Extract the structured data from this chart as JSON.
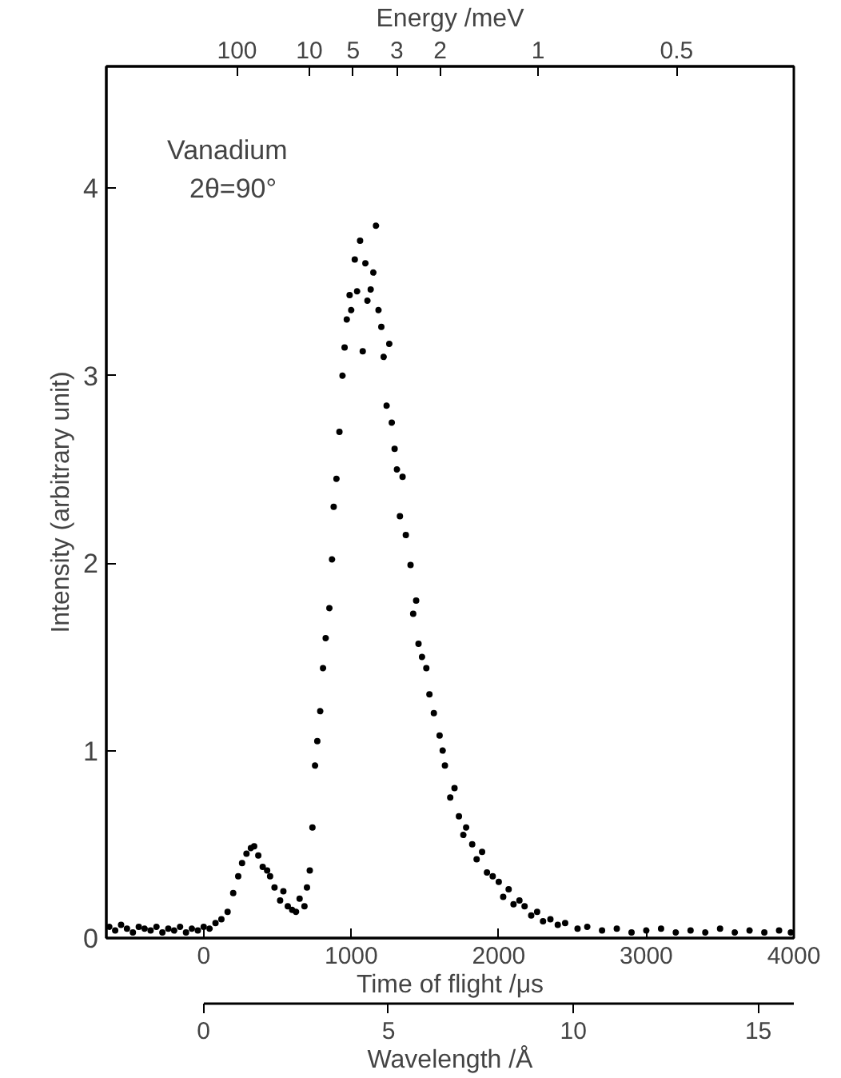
{
  "chart_data": {
    "type": "scatter",
    "title": "Energy /meV",
    "xlabel": "Time of flight /μs",
    "ylabel": "Intensity (arbitrary unit)",
    "x2label": "Wavelength /Å",
    "annotations": [
      "Vanadium",
      "2θ=90°",
      "100",
      "10",
      "5",
      "3",
      "2",
      "1",
      "0.5"
    ],
    "xlim": [
      -660,
      4000
    ],
    "xticks": [
      0,
      1000,
      2000,
      3000,
      4000
    ],
    "ylim": [
      0,
      4.65
    ],
    "yticks": [
      0,
      1,
      2,
      3,
      4
    ],
    "x2lim": [
      -2.63,
      15.96
    ],
    "x2ticks": [
      0,
      5,
      10,
      15
    ],
    "marker": "circle",
    "grid": false,
    "series": [
      {
        "color": "#000000",
        "x": [
          -640,
          -600,
          -560,
          -520,
          -480,
          -440,
          -400,
          -360,
          -320,
          -280,
          -240,
          -200,
          -160,
          -120,
          -80,
          -40,
          0,
          40,
          80,
          120,
          162,
          200,
          234,
          260,
          290,
          320,
          342,
          370,
          400,
          430,
          450,
          480,
          518,
          540,
          570,
          600,
          626,
          650,
          683,
          700,
          719,
          737,
          755,
          770,
          790,
          809,
          827,
          852,
          870,
          881,
          900,
          920,
          941,
          955,
          970,
          989,
          1000,
          1024,
          1040,
          1060,
          1078,
          1096,
          1110,
          1132,
          1150,
          1168,
          1185,
          1204,
          1220,
          1240,
          1258,
          1275,
          1294,
          1310,
          1330,
          1348,
          1370,
          1402,
          1420,
          1440,
          1456,
          1480,
          1509,
          1530,
          1560,
          1599,
          1620,
          1635,
          1671,
          1700,
          1730,
          1760,
          1779,
          1820,
          1850,
          1887,
          1920,
          1959,
          2000,
          2030,
          2067,
          2100,
          2140,
          2175,
          2220,
          2260,
          2300,
          2350,
          2400,
          2450,
          2534,
          2600,
          2700,
          2800,
          2900,
          3000,
          3100,
          3200,
          3300,
          3400,
          3500,
          3600,
          3700,
          3800,
          3900,
          3980
        ],
        "values": [
          0.06,
          0.04,
          0.07,
          0.05,
          0.03,
          0.06,
          0.05,
          0.04,
          0.06,
          0.03,
          0.05,
          0.04,
          0.06,
          0.03,
          0.05,
          0.04,
          0.06,
          0.05,
          0.08,
          0.1,
          0.14,
          0.24,
          0.33,
          0.4,
          0.45,
          0.48,
          0.49,
          0.44,
          0.38,
          0.36,
          0.33,
          0.27,
          0.2,
          0.25,
          0.17,
          0.15,
          0.14,
          0.21,
          0.17,
          0.27,
          0.36,
          0.59,
          0.92,
          1.05,
          1.21,
          1.44,
          1.6,
          1.76,
          2.02,
          2.3,
          2.45,
          2.7,
          3.0,
          3.15,
          3.3,
          3.43,
          3.35,
          3.62,
          3.45,
          3.72,
          3.13,
          3.6,
          3.4,
          3.46,
          3.55,
          3.8,
          3.35,
          3.26,
          3.1,
          2.84,
          3.17,
          2.75,
          2.61,
          2.5,
          2.25,
          2.46,
          2.15,
          1.99,
          1.73,
          1.8,
          1.57,
          1.5,
          1.44,
          1.3,
          1.2,
          1.08,
          1.0,
          0.92,
          0.75,
          0.8,
          0.65,
          0.55,
          0.59,
          0.5,
          0.42,
          0.46,
          0.35,
          0.33,
          0.3,
          0.22,
          0.26,
          0.18,
          0.2,
          0.17,
          0.12,
          0.14,
          0.09,
          0.1,
          0.07,
          0.08,
          0.05,
          0.06,
          0.04,
          0.05,
          0.03,
          0.04,
          0.05,
          0.03,
          0.04,
          0.03,
          0.05,
          0.03,
          0.04,
          0.03,
          0.04,
          0.03
        ]
      }
    ]
  }
}
